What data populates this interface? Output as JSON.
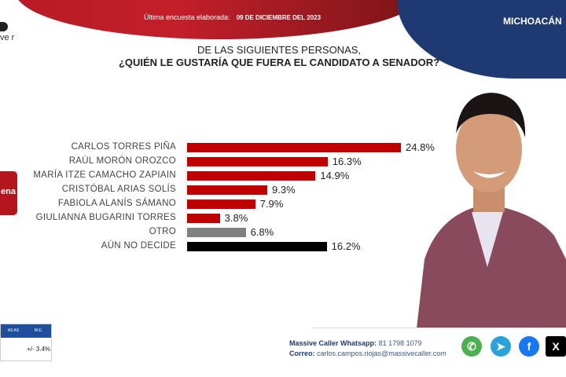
{
  "header": {
    "survey_label": "Última encuesta elaborada:",
    "survey_date": "09 DE DICIEMBRE DEL 2023",
    "state": "MICHOACÁN",
    "logo_text": "ve r"
  },
  "question": {
    "line1": "DE LAS SIGUIENTES PERSONAS,",
    "line2": "¿QUIÉN LE GUSTARÍA QUE FUERA EL CANDIDATO  A SENADOR?"
  },
  "party_logo": "ena",
  "chart_data": {
    "type": "bar",
    "orientation": "horizontal",
    "title": "¿QUIÉN LE GUSTARÍA QUE FUERA EL CANDIDATO A SENADOR?",
    "categories": [
      "CARLOS TORRES PIÑA",
      "RAÚL MORÓN OROZCO",
      "MARÍA ITZE CAMACHO ZAPIAIN",
      "CRISTÓBAL ARIAS SOLÍS",
      "FABIOLA ALANÍS SÁMANO",
      "GIULIANNA BUGARINI TORRES",
      "OTRO",
      "AÚN NO DECIDE"
    ],
    "values": [
      24.8,
      16.3,
      14.9,
      9.3,
      7.9,
      3.8,
      6.8,
      16.2
    ],
    "value_labels": [
      "24.8%",
      "16.3%",
      "14.9%",
      "9.3%",
      "7.9%",
      "3.8%",
      "6.8%",
      "16.2%"
    ],
    "colors": [
      "#c00000",
      "#c00000",
      "#c00000",
      "#c00000",
      "#c00000",
      "#c00000",
      "#808080",
      "#000000"
    ],
    "xlim": [
      0,
      25
    ]
  },
  "table": {
    "header_left": "AS AS",
    "header_me": "M.E.",
    "value_me": "+/- 3.4%"
  },
  "contact": {
    "whatsapp_label": "Massive Caller Whatsapp:",
    "whatsapp": "81 1798  1079",
    "email_label": "Correo:",
    "email": "carlos.campos.riojas@massivecaller.com"
  },
  "social": {
    "whatsapp": "✆",
    "telegram": "➤",
    "facebook": "f",
    "x": "X"
  }
}
